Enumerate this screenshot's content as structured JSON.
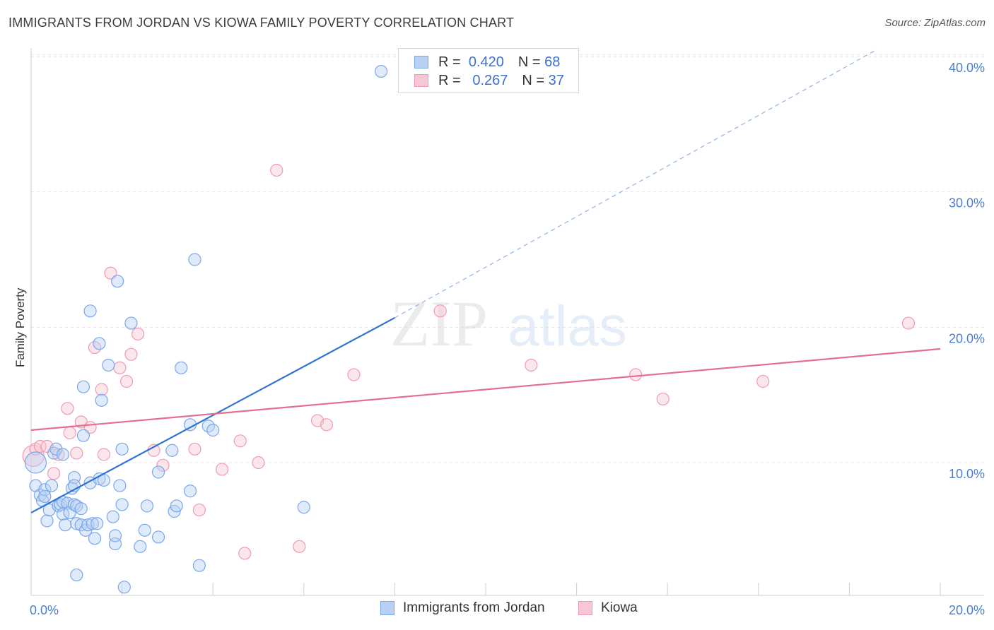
{
  "title": "IMMIGRANTS FROM JORDAN VS KIOWA FAMILY POVERTY CORRELATION CHART",
  "source": "Source: ZipAtlas.com",
  "colors": {
    "blue": "#7aa7e8",
    "blue_fill": "#b8d0f3",
    "blue_line": "#2e72d2",
    "pink": "#ef9ab3",
    "pink_fill": "#f7c7d5",
    "pink_line": "#e46d94",
    "tick_text": "#4a7fd0"
  },
  "legend": {
    "r_label": "R =",
    "n_label": "N =",
    "rows": [
      {
        "name": "Immigrants from Jordan",
        "r": "0.420",
        "n": "68"
      },
      {
        "name": "Kiowa",
        "r": "0.267",
        "n": "37"
      }
    ]
  },
  "watermark": {
    "zip": "ZIP",
    "atlas": "atlas"
  },
  "chart_data": {
    "type": "scatter",
    "title": "IMMIGRANTS FROM JORDAN VS KIOWA FAMILY POVERTY CORRELATION CHART",
    "xlabel": "",
    "ylabel": "Family Poverty",
    "xlim": [
      0,
      20
    ],
    "ylim": [
      0,
      41
    ],
    "x_tick_labels": [
      {
        "value": 0,
        "label": "0.0%"
      },
      {
        "value": 20,
        "label": "20.0%"
      }
    ],
    "y_tick_labels": [
      {
        "value": 10,
        "label": "10.0%"
      },
      {
        "value": 20,
        "label": "20.0%"
      },
      {
        "value": 30,
        "label": "30.0%"
      },
      {
        "value": 40,
        "label": "40.0%"
      }
    ],
    "series": [
      {
        "name": "Immigrants from Jordan",
        "r": 0.42,
        "n": 68,
        "trend": {
          "x0": 0,
          "y0": 6.3,
          "x1": 8,
          "y1": 20.7,
          "dashed_to_x": 18.6,
          "dashed_to_y": 40.5
        },
        "points": [
          {
            "x": 0.1,
            "y": 10.0,
            "big": true
          },
          {
            "x": 0.1,
            "y": 8.3
          },
          {
            "x": 0.2,
            "y": 7.6
          },
          {
            "x": 0.25,
            "y": 7.2
          },
          {
            "x": 0.3,
            "y": 8.0
          },
          {
            "x": 0.3,
            "y": 7.5
          },
          {
            "x": 0.35,
            "y": 5.7
          },
          {
            "x": 0.4,
            "y": 6.5
          },
          {
            "x": 0.45,
            "y": 8.3
          },
          {
            "x": 0.5,
            "y": 10.7
          },
          {
            "x": 0.55,
            "y": 11.0
          },
          {
            "x": 0.6,
            "y": 6.8
          },
          {
            "x": 0.65,
            "y": 6.9
          },
          {
            "x": 0.7,
            "y": 10.6
          },
          {
            "x": 0.7,
            "y": 7.1
          },
          {
            "x": 0.7,
            "y": 6.2
          },
          {
            "x": 0.75,
            "y": 5.4
          },
          {
            "x": 0.8,
            "y": 7.0
          },
          {
            "x": 0.85,
            "y": 6.3
          },
          {
            "x": 0.9,
            "y": 8.1
          },
          {
            "x": 0.95,
            "y": 8.9
          },
          {
            "x": 0.95,
            "y": 8.3
          },
          {
            "x": 0.95,
            "y": 6.9
          },
          {
            "x": 1.0,
            "y": 6.8
          },
          {
            "x": 1.0,
            "y": 5.5
          },
          {
            "x": 1.0,
            "y": 1.7
          },
          {
            "x": 1.1,
            "y": 6.6
          },
          {
            "x": 1.1,
            "y": 5.4
          },
          {
            "x": 1.15,
            "y": 15.6
          },
          {
            "x": 1.15,
            "y": 12.0
          },
          {
            "x": 1.2,
            "y": 5.0
          },
          {
            "x": 1.25,
            "y": 5.4
          },
          {
            "x": 1.3,
            "y": 21.2
          },
          {
            "x": 1.3,
            "y": 8.5
          },
          {
            "x": 1.35,
            "y": 5.5
          },
          {
            "x": 1.4,
            "y": 4.4
          },
          {
            "x": 1.45,
            "y": 5.5
          },
          {
            "x": 1.5,
            "y": 8.8
          },
          {
            "x": 1.5,
            "y": 18.8
          },
          {
            "x": 1.55,
            "y": 14.6
          },
          {
            "x": 1.6,
            "y": 8.7
          },
          {
            "x": 1.7,
            "y": 17.2
          },
          {
            "x": 1.8,
            "y": 6.0
          },
          {
            "x": 1.85,
            "y": 4.0
          },
          {
            "x": 1.85,
            "y": 4.6
          },
          {
            "x": 1.9,
            "y": 23.4
          },
          {
            "x": 1.95,
            "y": 8.3
          },
          {
            "x": 2.0,
            "y": 11.0
          },
          {
            "x": 2.0,
            "y": 6.9
          },
          {
            "x": 2.05,
            "y": 0.8
          },
          {
            "x": 2.2,
            "y": 20.3
          },
          {
            "x": 2.4,
            "y": 3.8
          },
          {
            "x": 2.5,
            "y": 5.0
          },
          {
            "x": 2.55,
            "y": 6.8
          },
          {
            "x": 2.8,
            "y": 4.5
          },
          {
            "x": 2.8,
            "y": 9.3
          },
          {
            "x": 3.1,
            "y": 10.9
          },
          {
            "x": 3.15,
            "y": 6.4
          },
          {
            "x": 3.2,
            "y": 6.8
          },
          {
            "x": 3.3,
            "y": 17.0
          },
          {
            "x": 3.5,
            "y": 12.8
          },
          {
            "x": 3.5,
            "y": 7.9
          },
          {
            "x": 3.6,
            "y": 25.0
          },
          {
            "x": 3.7,
            "y": 2.4
          },
          {
            "x": 3.9,
            "y": 12.7
          },
          {
            "x": 4.0,
            "y": 12.4
          },
          {
            "x": 6.0,
            "y": 6.7
          },
          {
            "x": 7.7,
            "y": 38.9
          }
        ]
      },
      {
        "name": "Kiowa",
        "r": 0.267,
        "n": 37,
        "trend": {
          "x0": 0,
          "y0": 12.4,
          "x1": 20,
          "y1": 18.4
        },
        "points": [
          {
            "x": 0.05,
            "y": 10.5,
            "big": true
          },
          {
            "x": 0.1,
            "y": 11.0
          },
          {
            "x": 0.2,
            "y": 11.2
          },
          {
            "x": 0.35,
            "y": 11.2
          },
          {
            "x": 0.5,
            "y": 9.2
          },
          {
            "x": 0.6,
            "y": 10.6
          },
          {
            "x": 0.8,
            "y": 14.0
          },
          {
            "x": 0.85,
            "y": 12.2
          },
          {
            "x": 1.0,
            "y": 10.7
          },
          {
            "x": 1.1,
            "y": 13.0
          },
          {
            "x": 1.3,
            "y": 12.6
          },
          {
            "x": 1.4,
            "y": 18.5
          },
          {
            "x": 1.55,
            "y": 15.4
          },
          {
            "x": 1.6,
            "y": 10.6
          },
          {
            "x": 1.75,
            "y": 24.0
          },
          {
            "x": 1.95,
            "y": 17.0
          },
          {
            "x": 2.1,
            "y": 16.0
          },
          {
            "x": 2.2,
            "y": 18.0
          },
          {
            "x": 2.35,
            "y": 19.5
          },
          {
            "x": 2.7,
            "y": 10.9
          },
          {
            "x": 2.9,
            "y": 9.8
          },
          {
            "x": 3.7,
            "y": 6.5
          },
          {
            "x": 3.6,
            "y": 11.0
          },
          {
            "x": 4.2,
            "y": 9.5
          },
          {
            "x": 4.6,
            "y": 11.6
          },
          {
            "x": 4.7,
            "y": 3.3
          },
          {
            "x": 5.0,
            "y": 10.0
          },
          {
            "x": 5.4,
            "y": 31.6
          },
          {
            "x": 5.9,
            "y": 3.8
          },
          {
            "x": 6.3,
            "y": 13.1
          },
          {
            "x": 6.5,
            "y": 12.8
          },
          {
            "x": 7.1,
            "y": 16.5
          },
          {
            "x": 9.0,
            "y": 21.2
          },
          {
            "x": 11.0,
            "y": 17.2
          },
          {
            "x": 13.3,
            "y": 16.5
          },
          {
            "x": 13.9,
            "y": 14.7
          },
          {
            "x": 16.1,
            "y": 16.0
          },
          {
            "x": 19.3,
            "y": 20.3
          }
        ]
      }
    ]
  }
}
